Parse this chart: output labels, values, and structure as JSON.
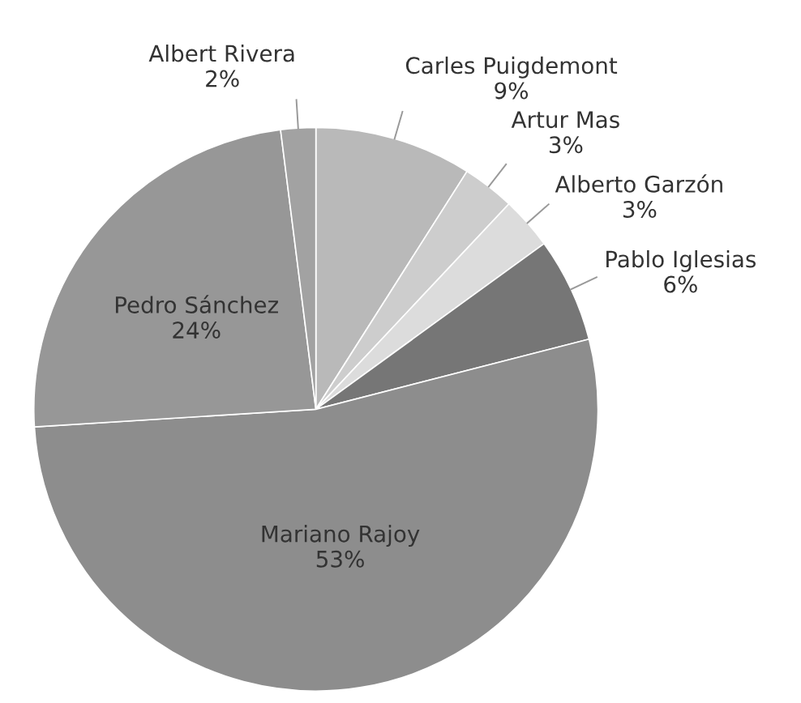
{
  "chart_data": {
    "type": "pie",
    "categories": [
      "Carles Puigdemont",
      "Artur Mas",
      "Alberto Garzón",
      "Pablo Iglesias",
      "Mariano Rajoy",
      "Pedro Sánchez",
      "Albert Rivera"
    ],
    "values": [
      9,
      3,
      3,
      6,
      53,
      24,
      2
    ],
    "value_labels": [
      "9%",
      "3%",
      "3%",
      "6%",
      "53%",
      "24%",
      "2%"
    ],
    "colors": [
      "#b9b9b9",
      "#cdcdcd",
      "#dcdcdc",
      "#767676",
      "#8d8d8d",
      "#979797",
      "#a2a2a2"
    ],
    "legend": false
  }
}
